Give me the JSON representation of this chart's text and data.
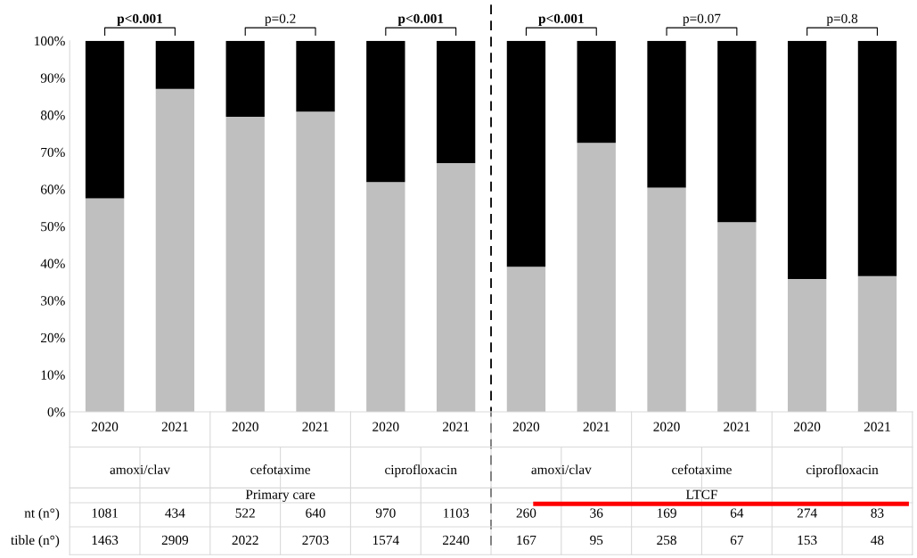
{
  "chart_data": {
    "type": "bar",
    "stacked": true,
    "categories": [
      "2020",
      "2021",
      "2020",
      "2021",
      "2020",
      "2021",
      "2020",
      "2021",
      "2020",
      "2021",
      "2020",
      "2021"
    ],
    "series": [
      {
        "color": "#bfbfbf",
        "values": [
          57.5,
          87.0,
          79.5,
          80.9,
          61.9,
          67.0,
          39.1,
          72.5,
          60.4,
          51.1,
          35.8,
          36.6
        ]
      },
      {
        "color": "#000000",
        "values": [
          42.5,
          13.0,
          20.5,
          19.1,
          38.1,
          33.0,
          60.9,
          27.5,
          39.6,
          48.9,
          64.2,
          63.4
        ]
      }
    ],
    "ylim": [
      0,
      100
    ],
    "yticks": [
      {
        "value": 0,
        "label": "0%"
      },
      {
        "value": 10,
        "label": "10%"
      },
      {
        "value": 20,
        "label": "20%"
      },
      {
        "value": 30,
        "label": "30%"
      },
      {
        "value": 40,
        "label": "40%"
      },
      {
        "value": 50,
        "label": "50%"
      },
      {
        "value": 60,
        "label": "60%"
      },
      {
        "value": 70,
        "label": "70%"
      },
      {
        "value": 80,
        "label": "80%"
      },
      {
        "value": 90,
        "label": "90%"
      },
      {
        "value": 100,
        "label": "100%"
      }
    ],
    "grid": false,
    "annotations": [
      "p<0.001",
      "p=0.2",
      "p<0.001",
      "p<0.001",
      "p=0.07",
      "p=0.8",
      "amoxi/clav",
      "cefotaxime",
      "ciprofloxacin",
      "amoxi/clav",
      "cefotaxime",
      "ciprofloxacin",
      "Primary care",
      "LTCF",
      "nt (n°)",
      "tible (n°)",
      "1081",
      "434",
      "522",
      "640",
      "970",
      "1103",
      "260",
      "36",
      "169",
      "64",
      "274",
      "83",
      "1463",
      "2909",
      "2022",
      "2703",
      "1574",
      "2240",
      "167",
      "95",
      "258",
      "67",
      "153",
      "48"
    ]
  }
}
